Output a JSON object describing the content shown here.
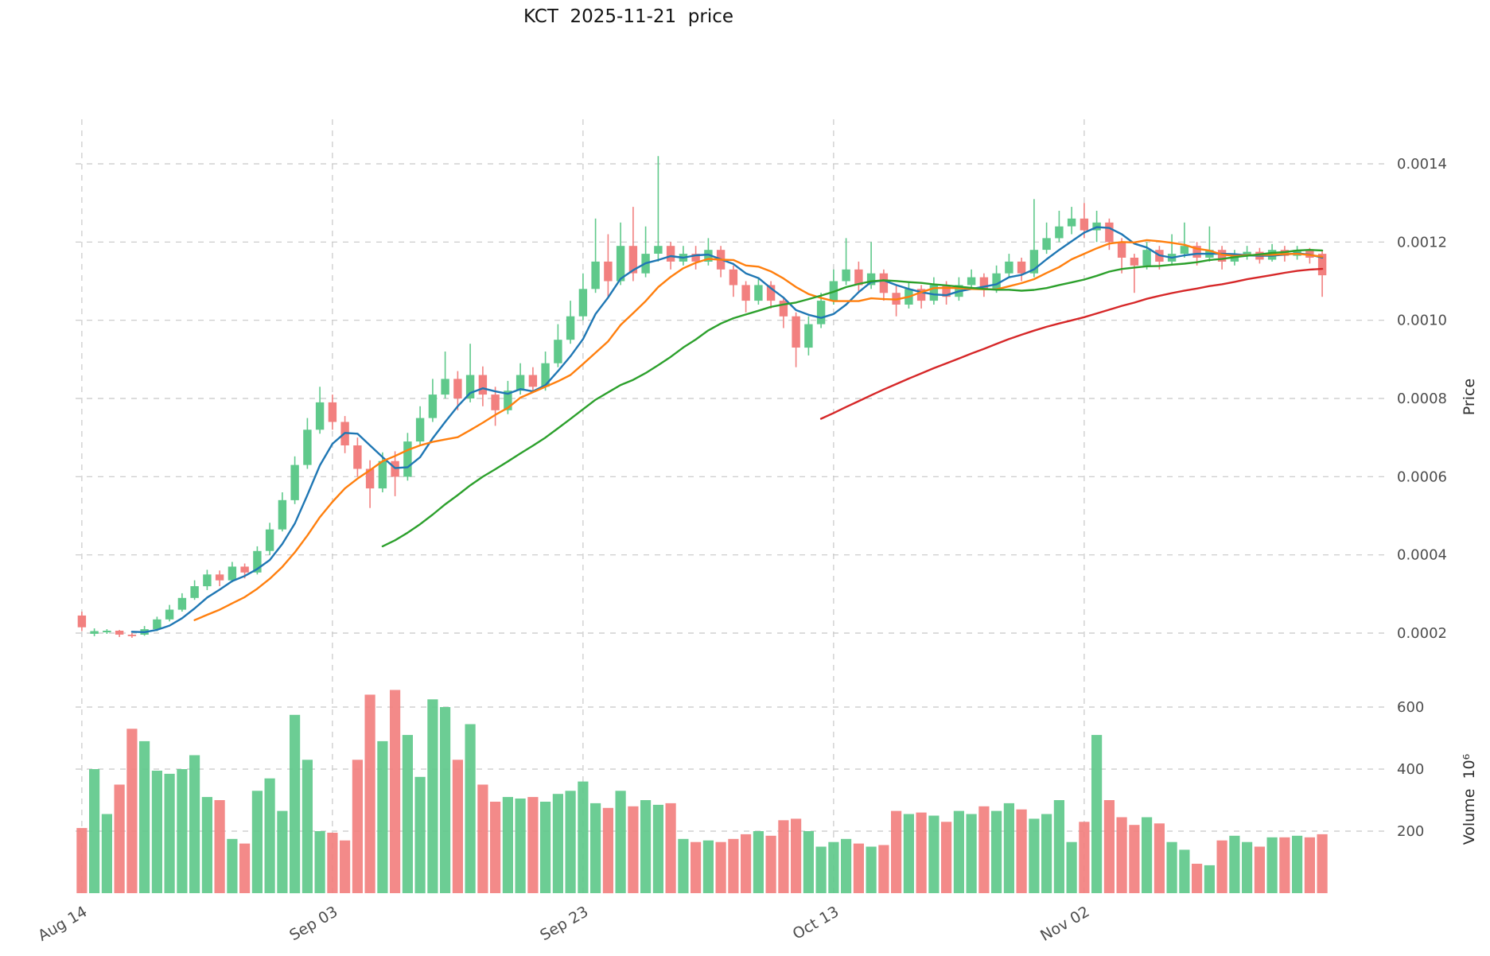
{
  "title": "KCT  2025-11-21  price",
  "chart_data": {
    "type": "candlestick",
    "title": "KCT  2025-11-21  price",
    "ylabel_price": "Price",
    "ylabel_volume": "Volume  10⁶",
    "frequency": "daily",
    "num_candles": 100,
    "x_tick_labels": [
      "Aug 14",
      "Sep 03",
      "Sep 23",
      "Oct 13",
      "Nov 02"
    ],
    "x_tick_indices": [
      0,
      20,
      40,
      60,
      80
    ],
    "price_ticks": [
      0.0002,
      0.0004,
      0.0006,
      0.0008,
      0.001,
      0.0012,
      0.0014
    ],
    "volume_ticks": [
      200,
      400,
      600
    ],
    "price_axis_range": [
      0.0002,
      0.0014
    ],
    "volume_unit": 1000000,
    "open": [
      0.000245,
      0.000198,
      0.000202,
      0.000206,
      0.000196,
      0.000196,
      0.00021,
      0.000235,
      0.00026,
      0.00029,
      0.00032,
      0.00035,
      0.000335,
      0.00037,
      0.000355,
      0.00041,
      0.000465,
      0.00054,
      0.00063,
      0.00072,
      0.00079,
      0.00074,
      0.00068,
      0.00062,
      0.00057,
      0.00064,
      0.0006,
      0.00069,
      0.00075,
      0.00081,
      0.00085,
      0.0008,
      0.00086,
      0.00081,
      0.00077,
      0.00082,
      0.00086,
      0.00083,
      0.00089,
      0.00095,
      0.00101,
      0.00108,
      0.00115,
      0.0011,
      0.00119,
      0.00112,
      0.00117,
      0.00119,
      0.00115,
      0.00117,
      0.00115,
      0.00118,
      0.00113,
      0.00109,
      0.00105,
      0.00109,
      0.00105,
      0.00101,
      0.00093,
      0.00099,
      0.00105,
      0.0011,
      0.00113,
      0.00109,
      0.00112,
      0.00107,
      0.00104,
      0.00108,
      0.00105,
      0.00109,
      0.00106,
      0.00109,
      0.00111,
      0.00108,
      0.00112,
      0.00115,
      0.00112,
      0.00118,
      0.00121,
      0.00124,
      0.00126,
      0.00123,
      0.00125,
      0.0012,
      0.00116,
      0.00114,
      0.00118,
      0.00115,
      0.00117,
      0.00119,
      0.00116,
      0.00118,
      0.00115,
      0.001165,
      0.001175,
      0.001155,
      0.00118,
      0.001165,
      0.00118,
      0.00117
    ],
    "high": [
      0.000255,
      0.000212,
      0.00021,
      0.000208,
      0.0002,
      0.000218,
      0.000242,
      0.000272,
      0.000302,
      0.000335,
      0.000362,
      0.00036,
      0.000382,
      0.000378,
      0.000422,
      0.000482,
      0.00056,
      0.000652,
      0.00075,
      0.00083,
      0.00081,
      0.000755,
      0.0007,
      0.000642,
      0.000662,
      0.000665,
      0.000712,
      0.00078,
      0.00085,
      0.00092,
      0.00087,
      0.00094,
      0.000882,
      0.00083,
      0.000845,
      0.00089,
      0.00088,
      0.00092,
      0.00099,
      0.00105,
      0.00112,
      0.00126,
      0.00122,
      0.00125,
      0.00129,
      0.00124,
      0.00142,
      0.0012,
      0.00119,
      0.00119,
      0.00121,
      0.00119,
      0.00114,
      0.0011,
      0.00111,
      0.0011,
      0.00106,
      0.00102,
      0.00101,
      0.00107,
      0.00113,
      0.00121,
      0.00115,
      0.0012,
      0.00113,
      0.00109,
      0.0011,
      0.00109,
      0.00111,
      0.0011,
      0.00111,
      0.00113,
      0.00112,
      0.00114,
      0.00117,
      0.00116,
      0.00131,
      0.00125,
      0.00128,
      0.00129,
      0.0013,
      0.00128,
      0.00126,
      0.00121,
      0.00117,
      0.0012,
      0.00119,
      0.00122,
      0.00125,
      0.0012,
      0.00124,
      0.00119,
      0.00118,
      0.00119,
      0.001185,
      0.001195,
      0.00119,
      0.00119,
      0.001185,
      0.00118
    ],
    "low": [
      0.000205,
      0.000192,
      0.000198,
      0.00019,
      0.000188,
      0.000193,
      0.000205,
      0.00023,
      0.000255,
      0.000285,
      0.00031,
      0.00032,
      0.00033,
      0.00034,
      0.00035,
      0.0004,
      0.00046,
      0.00053,
      0.00062,
      0.00071,
      0.00072,
      0.00066,
      0.0006,
      0.00052,
      0.00056,
      0.00055,
      0.00059,
      0.00068,
      0.00074,
      0.0008,
      0.00077,
      0.00079,
      0.00078,
      0.00073,
      0.00076,
      0.00081,
      0.00082,
      0.00082,
      0.00088,
      0.00094,
      0.001,
      0.00107,
      0.00106,
      0.00109,
      0.0011,
      0.00111,
      0.00115,
      0.00113,
      0.00114,
      0.00113,
      0.00114,
      0.00111,
      0.00106,
      0.00102,
      0.00104,
      0.00103,
      0.00098,
      0.00088,
      0.00091,
      0.00098,
      0.00104,
      0.00109,
      0.00107,
      0.00108,
      0.00105,
      0.00101,
      0.00103,
      0.00103,
      0.00104,
      0.00104,
      0.00105,
      0.00108,
      0.00106,
      0.00107,
      0.00111,
      0.0011,
      0.00111,
      0.00117,
      0.0012,
      0.00122,
      0.00121,
      0.0012,
      0.00118,
      0.00112,
      0.00107,
      0.00113,
      0.00113,
      0.00114,
      0.00116,
      0.00114,
      0.00115,
      0.00113,
      0.00114,
      0.001155,
      0.001145,
      0.00115,
      0.00115,
      0.001155,
      0.001145,
      0.00106
    ],
    "close": [
      0.000215,
      0.000205,
      0.000206,
      0.000196,
      0.000195,
      0.00021,
      0.000235,
      0.00026,
      0.00029,
      0.00032,
      0.00035,
      0.000335,
      0.00037,
      0.000355,
      0.00041,
      0.000465,
      0.00054,
      0.00063,
      0.00072,
      0.00079,
      0.00074,
      0.00068,
      0.00062,
      0.00057,
      0.00064,
      0.0006,
      0.00069,
      0.00075,
      0.00081,
      0.00085,
      0.0008,
      0.00086,
      0.00081,
      0.00077,
      0.00082,
      0.00086,
      0.00083,
      0.00089,
      0.00095,
      0.00101,
      0.00108,
      0.00115,
      0.0011,
      0.00119,
      0.00112,
      0.00117,
      0.00119,
      0.00115,
      0.00117,
      0.00115,
      0.00118,
      0.00113,
      0.00109,
      0.00105,
      0.00109,
      0.00105,
      0.00101,
      0.00093,
      0.00099,
      0.00105,
      0.0011,
      0.00113,
      0.00109,
      0.00112,
      0.00107,
      0.00104,
      0.00108,
      0.00105,
      0.00109,
      0.00106,
      0.00109,
      0.00111,
      0.00108,
      0.00112,
      0.00115,
      0.00112,
      0.00118,
      0.00121,
      0.00124,
      0.00126,
      0.00123,
      0.00125,
      0.0012,
      0.00116,
      0.00114,
      0.00118,
      0.00115,
      0.00117,
      0.00119,
      0.00116,
      0.00118,
      0.00115,
      0.001165,
      0.001175,
      0.001155,
      0.00118,
      0.001165,
      0.00118,
      0.00116,
      0.001115
    ],
    "volume_millions": [
      210,
      400,
      255,
      350,
      530,
      490,
      395,
      385,
      400,
      445,
      310,
      300,
      175,
      160,
      330,
      370,
      265,
      575,
      430,
      200,
      195,
      170,
      430,
      640,
      490,
      655,
      510,
      375,
      625,
      600,
      430,
      545,
      350,
      295,
      310,
      305,
      310,
      295,
      320,
      330,
      360,
      290,
      275,
      330,
      280,
      300,
      285,
      290,
      175,
      165,
      170,
      165,
      175,
      190,
      200,
      185,
      235,
      240,
      200,
      150,
      165,
      175,
      160,
      150,
      155,
      265,
      255,
      260,
      250,
      230,
      265,
      255,
      280,
      265,
      290,
      270,
      240,
      255,
      300,
      165,
      230,
      510,
      300,
      245,
      220,
      245,
      225,
      165,
      140,
      95,
      90,
      170,
      185,
      165,
      150,
      180,
      180,
      185,
      180,
      190
    ],
    "moving_averages": [
      {
        "name": "MA5",
        "window": 5,
        "color": "#1f77b4"
      },
      {
        "name": "MA10",
        "window": 10,
        "color": "#ff7f0e"
      },
      {
        "name": "MA25",
        "window": 25,
        "color": "#2ca02c"
      },
      {
        "name": "MA60",
        "window": 60,
        "color": "#d62728"
      }
    ]
  },
  "colors": {
    "up": "#5fc98b",
    "down": "#f2807f",
    "grid": "#c8c8c8",
    "tick_text": "#4d4d4d",
    "title_text": "#141414",
    "background": "#ffffff"
  }
}
